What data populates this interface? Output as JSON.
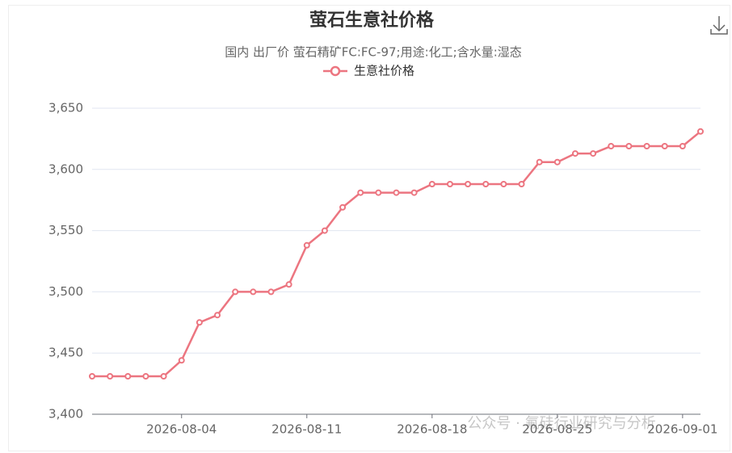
{
  "chart_data": {
    "type": "line",
    "title": "萤石生意社价格",
    "subtitle": "国内 出厂价 萤石精矿FC:FC-97;用途:化工;含水量:湿态",
    "watermark": "公众号 · 氟硅行业研究与分析",
    "x": [
      "2026-07-30",
      "2026-07-31",
      "2026-08-01",
      "2026-08-02",
      "2026-08-03",
      "2026-08-04",
      "2026-08-05",
      "2026-08-06",
      "2026-08-07",
      "2026-08-08",
      "2026-08-09",
      "2026-08-10",
      "2026-08-11",
      "2026-08-12",
      "2026-08-13",
      "2026-08-14",
      "2026-08-15",
      "2026-08-16",
      "2026-08-17",
      "2026-08-18",
      "2026-08-19",
      "2026-08-20",
      "2026-08-21",
      "2026-08-22",
      "2026-08-23",
      "2026-08-24",
      "2026-08-25",
      "2026-08-26",
      "2026-08-27",
      "2026-08-28",
      "2026-08-29",
      "2026-08-30",
      "2026-08-31",
      "2026-09-01",
      "2026-09-02"
    ],
    "xticks": [
      "2026-08-04",
      "2026-08-11",
      "2026-08-18",
      "2026-08-25",
      "2026-09-01"
    ],
    "series": [
      {
        "name": "生意社价格",
        "color": "#ec7580",
        "values": [
          3431,
          3431,
          3431,
          3431,
          3431,
          3444,
          3475,
          3481,
          3500,
          3500,
          3500,
          3506,
          3538,
          3550,
          3569,
          3581,
          3581,
          3581,
          3581,
          3588,
          3588,
          3588,
          3588,
          3588,
          3588,
          3606,
          3606,
          3613,
          3613,
          3619,
          3619,
          3619,
          3619,
          3619,
          3631
        ]
      }
    ],
    "ylim": [
      3400,
      3650
    ],
    "yticks": [
      {
        "value": 3400,
        "label": "3,400"
      },
      {
        "value": 3450,
        "label": "3,450"
      },
      {
        "value": 3500,
        "label": "3,500"
      },
      {
        "value": 3550,
        "label": "3,550"
      },
      {
        "value": 3600,
        "label": "3,600"
      },
      {
        "value": 3650,
        "label": "3,650"
      }
    ],
    "grid": true
  }
}
